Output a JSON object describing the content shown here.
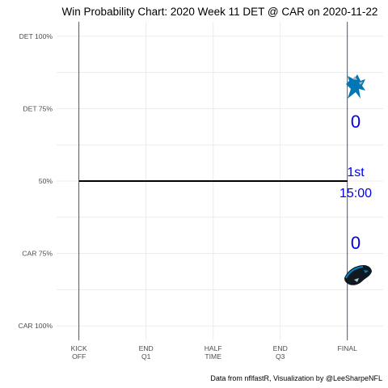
{
  "chart_data": {
    "type": "line",
    "title": "Win Probability Chart: 2020 Week 11 DET @ CAR on 2020-11-22",
    "caption": "Data from nflfastR, Visualization by @LeeSharpeNFL",
    "xlabel": "",
    "ylabel": "",
    "x_ticks": [
      {
        "value": 0,
        "label": [
          "KICK",
          "OFF"
        ]
      },
      {
        "value": 15,
        "label": [
          "END",
          "Q1"
        ]
      },
      {
        "value": 30,
        "label": [
          "HALF",
          "TIME"
        ]
      },
      {
        "value": 45,
        "label": [
          "END",
          "Q3"
        ]
      },
      {
        "value": 60,
        "label": [
          "FINAL"
        ]
      }
    ],
    "y_ticks": [
      {
        "value": 1.0,
        "label": "DET 100%"
      },
      {
        "value": 0.75,
        "label": "DET 75%"
      },
      {
        "value": 0.5,
        "label": "50%"
      },
      {
        "value": 0.25,
        "label": "CAR 75%"
      },
      {
        "value": 0.0,
        "label": "CAR 100%"
      }
    ],
    "xlim": [
      -5,
      68
    ],
    "ylim": [
      -0.05,
      1.05
    ],
    "grid": true,
    "series": [
      {
        "x": [
          0,
          60
        ],
        "y": [
          0.5,
          0.5
        ],
        "color": "#000000"
      }
    ],
    "away_team": "DET",
    "home_team": "CAR",
    "away_score": "0",
    "home_score": "0",
    "period": "1st",
    "clock": "15:00",
    "colors": {
      "line": "#000000",
      "grid": "#ebebeb",
      "vline": "#23236b",
      "score_text": "#0000ee",
      "det_logo": "#0076b6",
      "car_logo": "#0085ca"
    }
  }
}
